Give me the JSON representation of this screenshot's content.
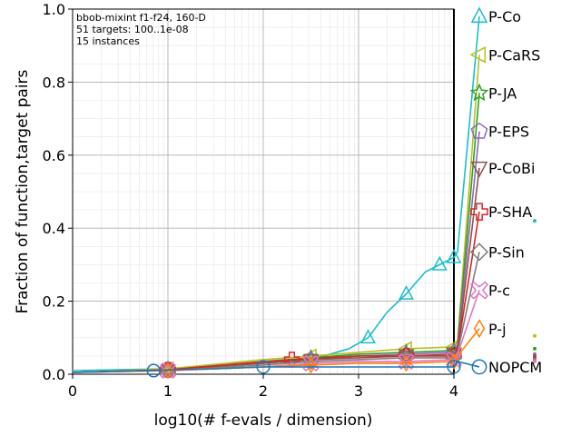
{
  "chart_data": {
    "type": "line",
    "xlabel": "log10(# f-evals / dimension)",
    "ylabel": "Fraction of function,target pairs",
    "xlim": [
      0,
      4
    ],
    "ylim": [
      0,
      1
    ],
    "xticks": [
      "0",
      "1",
      "2",
      "3",
      "4"
    ],
    "yticks": [
      "0.0",
      "0.2",
      "0.4",
      "0.6",
      "0.8",
      "1.0"
    ],
    "grid": true,
    "legend_placement": "right",
    "annotation_lines": [
      "bbob-mixint f1-f24, 160-D",
      "51 targets: 100..1e-08",
      "15 instances"
    ],
    "series": [
      {
        "name": "P-Co",
        "color": "#17becf",
        "marker": "triangle-up",
        "final": 0.98,
        "points": [
          [
            0,
            0.01
          ],
          [
            1,
            0.015
          ],
          [
            2,
            0.03
          ],
          [
            2.5,
            0.04
          ],
          [
            2.9,
            0.07
          ],
          [
            3.1,
            0.1
          ],
          [
            3.3,
            0.17
          ],
          [
            3.5,
            0.22
          ],
          [
            3.7,
            0.28
          ],
          [
            3.85,
            0.3
          ],
          [
            4,
            0.32
          ]
        ]
      },
      {
        "name": "P-CaRS",
        "color": "#bcbd22",
        "marker": "triangle-left",
        "final": 0.875,
        "points": [
          [
            0,
            0.005
          ],
          [
            1,
            0.015
          ],
          [
            2,
            0.04
          ],
          [
            2.5,
            0.05
          ],
          [
            3,
            0.06
          ],
          [
            3.5,
            0.07
          ],
          [
            4,
            0.075
          ]
        ]
      },
      {
        "name": "P-JA",
        "color": "#2ca02c",
        "marker": "star",
        "final": 0.77,
        "points": [
          [
            0,
            0.005
          ],
          [
            1,
            0.012
          ],
          [
            2,
            0.035
          ],
          [
            2.5,
            0.045
          ],
          [
            3,
            0.055
          ],
          [
            3.5,
            0.06
          ],
          [
            4,
            0.065
          ]
        ]
      },
      {
        "name": "P-EPS",
        "color": "#9467bd",
        "marker": "pentagon",
        "final": 0.665,
        "points": [
          [
            0,
            0.005
          ],
          [
            1,
            0.012
          ],
          [
            2,
            0.03
          ],
          [
            2.5,
            0.04
          ],
          [
            3,
            0.05
          ],
          [
            3.5,
            0.055
          ],
          [
            4,
            0.06
          ]
        ]
      },
      {
        "name": "P-CoBi",
        "color": "#8c564b",
        "marker": "triangle-down",
        "final": 0.565,
        "points": [
          [
            0,
            0.005
          ],
          [
            1,
            0.012
          ],
          [
            2,
            0.03
          ],
          [
            2.5,
            0.04
          ],
          [
            3,
            0.045
          ],
          [
            3.5,
            0.05
          ],
          [
            4,
            0.055
          ]
        ]
      },
      {
        "name": "P-SHA",
        "color": "#d62728",
        "marker": "plus",
        "final": 0.445,
        "points": [
          [
            0,
            0.005
          ],
          [
            1,
            0.012
          ],
          [
            1.8,
            0.03
          ],
          [
            2.3,
            0.04
          ],
          [
            3,
            0.05
          ],
          [
            3.5,
            0.05
          ],
          [
            4,
            0.05
          ]
        ]
      },
      {
        "name": "P-Sin",
        "color": "#7f7f7f",
        "marker": "diamond",
        "final": 0.335,
        "points": [
          [
            0,
            0.005
          ],
          [
            1,
            0.01
          ],
          [
            2,
            0.025
          ],
          [
            2.5,
            0.035
          ],
          [
            3,
            0.04
          ],
          [
            3.5,
            0.045
          ],
          [
            4,
            0.045
          ]
        ]
      },
      {
        "name": "P-c",
        "color": "#e377c2",
        "marker": "x",
        "final": 0.23,
        "points": [
          [
            0,
            0.005
          ],
          [
            1,
            0.01
          ],
          [
            2,
            0.02
          ],
          [
            2.5,
            0.03
          ],
          [
            3,
            0.035
          ],
          [
            3.5,
            0.035
          ],
          [
            4,
            0.04
          ]
        ]
      },
      {
        "name": "P-j",
        "color": "#ff7f0e",
        "marker": "thin-diamond",
        "final": 0.125,
        "points": [
          [
            0,
            0.005
          ],
          [
            1,
            0.01
          ],
          [
            2,
            0.02
          ],
          [
            2.5,
            0.025
          ],
          [
            3,
            0.03
          ],
          [
            3.5,
            0.03
          ],
          [
            4,
            0.035
          ]
        ]
      },
      {
        "name": "NOPCM",
        "color": "#1f77b4",
        "marker": "circle",
        "final": 0.02,
        "points": [
          [
            0,
            0.005
          ],
          [
            0.85,
            0.01
          ],
          [
            1.5,
            0.015
          ],
          [
            2,
            0.02
          ],
          [
            3,
            0.02
          ],
          [
            4,
            0.02
          ]
        ]
      }
    ],
    "outside_dots": [
      {
        "y": 0.42,
        "color": "#17becf"
      },
      {
        "y": 0.105,
        "color": "#bcbd22"
      },
      {
        "y": 0.07,
        "color": "#2ca02c"
      },
      {
        "y": 0.055,
        "color": "#9467bd"
      },
      {
        "y": 0.05,
        "color": "#8c564b"
      },
      {
        "y": 0.045,
        "color": "#d62728"
      },
      {
        "y": 0.04,
        "color": "#7f7f7f"
      },
      {
        "y": 0.035,
        "color": "#e377c2"
      }
    ]
  }
}
